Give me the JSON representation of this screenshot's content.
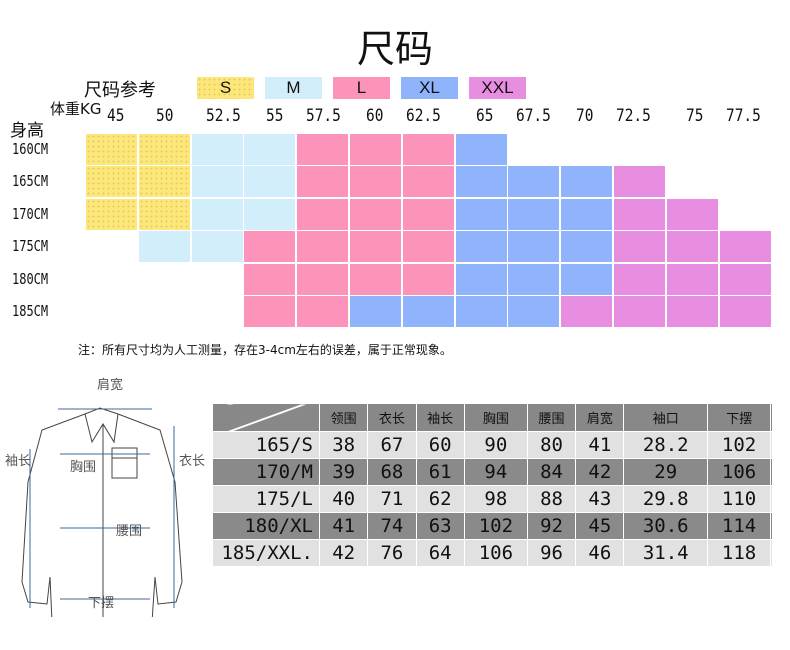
{
  "title": "尺码",
  "legend": {
    "label": "尺码参考",
    "items": [
      {
        "size": "S",
        "color": "#fbe77a"
      },
      {
        "size": "M",
        "color": "#d3eefb"
      },
      {
        "size": "L",
        "color": "#fb93ba"
      },
      {
        "size": "XL",
        "color": "#8fb4fb"
      },
      {
        "size": "XXL",
        "color": "#e78ee0"
      }
    ]
  },
  "weight_label": "体重KG",
  "height_label": "身高",
  "weights": [
    "45",
    "50",
    "52.5",
    "55",
    "57.5",
    "60",
    "62.5",
    "65",
    "67.5",
    "70",
    "72.5",
    "75",
    "77.5"
  ],
  "heights": [
    "160CM",
    "165CM",
    "170CM",
    "175CM",
    "180CM",
    "185CM"
  ],
  "grid": [
    [
      "S",
      "S",
      "M",
      "M",
      "L",
      "L",
      "L",
      "XL",
      "",
      "",
      "",
      "",
      ""
    ],
    [
      "S",
      "S",
      "M",
      "M",
      "L",
      "L",
      "L",
      "XL",
      "XL",
      "XL",
      "XXL",
      "",
      ""
    ],
    [
      "S",
      "S",
      "M",
      "M",
      "L",
      "L",
      "L",
      "XL",
      "XL",
      "XL",
      "XXL",
      "XXL",
      ""
    ],
    [
      "",
      "M",
      "M",
      "L",
      "L",
      "L",
      "L",
      "XL",
      "XL",
      "XL",
      "XXL",
      "XXL",
      "XXL"
    ],
    [
      "",
      "",
      "",
      "L",
      "L",
      "L",
      "L",
      "XL",
      "XL",
      "XL",
      "XXL",
      "XXL",
      "XXL"
    ],
    [
      "",
      "",
      "",
      "L",
      "L",
      "XL",
      "XL",
      "XL",
      "XL",
      "XXL",
      "XXL",
      "XXL",
      "XXL"
    ]
  ],
  "note": "注：所有尺寸均为人工测量，存在3-4cm左右的误差，属于正常现象。",
  "diagram": {
    "shoulder": "肩宽",
    "sleeve": "袖长",
    "chest": "胸围",
    "length": "衣长",
    "waist": "腰围",
    "hem": "下摆"
  },
  "table": {
    "headers": [
      "领围",
      "衣长",
      "袖长",
      "胸围",
      "腰围",
      "肩宽",
      "袖口",
      "下摆"
    ],
    "rows": [
      {
        "size": "165/S",
        "values": [
          "38",
          "67",
          "60",
          "90",
          "80",
          "41",
          "28.2",
          "102"
        ]
      },
      {
        "size": "170/M",
        "values": [
          "39",
          "68",
          "61",
          "94",
          "84",
          "42",
          "29",
          "106"
        ]
      },
      {
        "size": "175/L",
        "values": [
          "40",
          "71",
          "62",
          "98",
          "88",
          "43",
          "29.8",
          "110"
        ]
      },
      {
        "size": "180/XL",
        "values": [
          "41",
          "74",
          "63",
          "102",
          "92",
          "45",
          "30.6",
          "114"
        ]
      },
      {
        "size": "185/XXL.",
        "values": [
          "42",
          "76",
          "64",
          "106",
          "96",
          "46",
          "31.4",
          "118"
        ]
      }
    ]
  }
}
